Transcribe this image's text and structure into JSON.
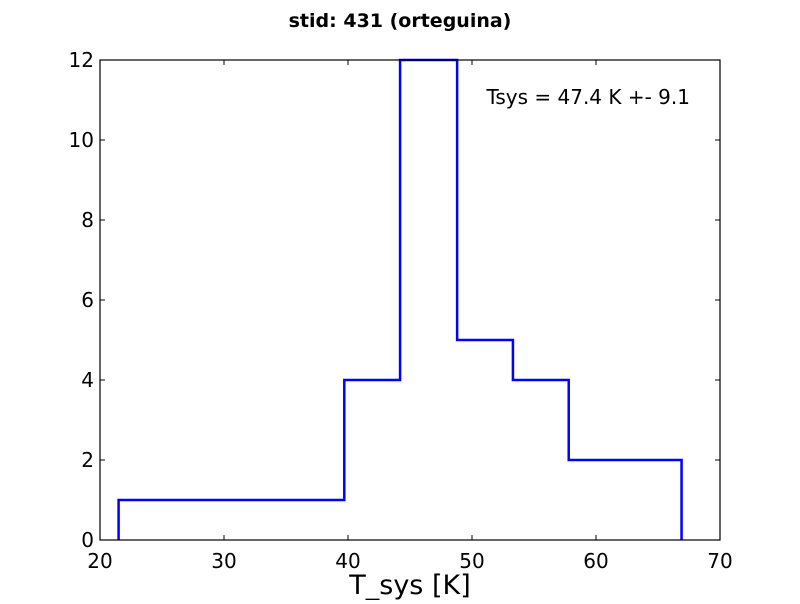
{
  "chart_data": {
    "type": "histogram",
    "title": "stid: 431 (orteguina)",
    "xlabel": "T_sys [K]",
    "ylabel": "",
    "xlim": [
      20,
      70
    ],
    "ylim": [
      0,
      12
    ],
    "x_ticks": [
      20,
      30,
      40,
      50,
      60,
      70
    ],
    "y_ticks": [
      0,
      2,
      4,
      6,
      8,
      10,
      12
    ],
    "grid": false,
    "annotation": "Tsys = 47.4 K +- 9.1",
    "line_color": "#0000ff",
    "bins": [
      {
        "x0": 21.5,
        "x1": 25.9,
        "count": 1
      },
      {
        "x0": 25.9,
        "x1": 30.4,
        "count": 1
      },
      {
        "x0": 30.4,
        "x1": 34.9,
        "count": 1
      },
      {
        "x0": 34.9,
        "x1": 39.7,
        "count": 1
      },
      {
        "x0": 39.7,
        "x1": 44.2,
        "count": 4
      },
      {
        "x0": 44.2,
        "x1": 48.8,
        "count": 12
      },
      {
        "x0": 48.8,
        "x1": 53.3,
        "count": 5
      },
      {
        "x0": 53.3,
        "x1": 57.8,
        "count": 4
      },
      {
        "x0": 57.8,
        "x1": 62.3,
        "count": 2
      },
      {
        "x0": 62.3,
        "x1": 66.9,
        "count": 2
      }
    ]
  }
}
